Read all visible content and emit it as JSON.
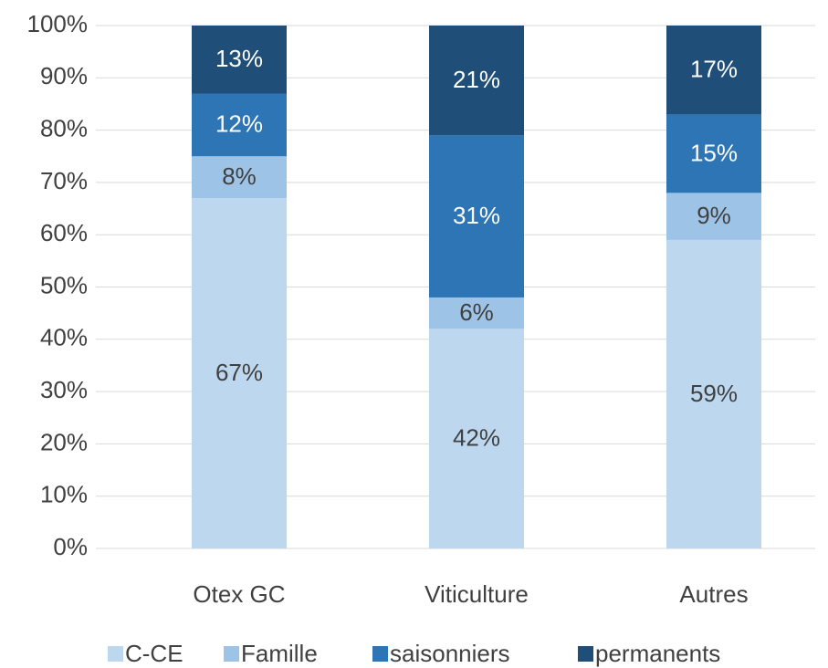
{
  "chart_data": {
    "type": "stacked_bar",
    "categories": [
      "Otex GC",
      "Viticulture",
      "Autres"
    ],
    "series": [
      {
        "name": "C-CE",
        "color": "#bdd7ee",
        "values": [
          67,
          42,
          59
        ],
        "value_labels": [
          "67%",
          "42%",
          "59%"
        ]
      },
      {
        "name": "Famille",
        "color": "#9dc3e6",
        "values": [
          8,
          6,
          9
        ],
        "value_labels": [
          "8%",
          "6%",
          "9%"
        ]
      },
      {
        "name": "saisonniers",
        "color": "#2e75b6",
        "values": [
          12,
          31,
          15
        ],
        "value_labels": [
          "12%",
          "31%",
          "15%"
        ]
      },
      {
        "name": "permanents",
        "color": "#1f4e79",
        "values": [
          13,
          21,
          17
        ],
        "value_labels": [
          "13%",
          "21%",
          "17%"
        ]
      }
    ],
    "ylim": [
      0,
      100
    ],
    "yticks": [
      {
        "value": 0,
        "label": "0%"
      },
      {
        "value": 10,
        "label": "10%"
      },
      {
        "value": 20,
        "label": "20%"
      },
      {
        "value": 30,
        "label": "30%"
      },
      {
        "value": 40,
        "label": "40%"
      },
      {
        "value": 50,
        "label": "50%"
      },
      {
        "value": 60,
        "label": "60%"
      },
      {
        "value": 70,
        "label": "70%"
      },
      {
        "value": 80,
        "label": "80%"
      },
      {
        "value": 90,
        "label": "90%"
      },
      {
        "value": 100,
        "label": "100%"
      }
    ],
    "grid": true,
    "legend": "bottom"
  }
}
